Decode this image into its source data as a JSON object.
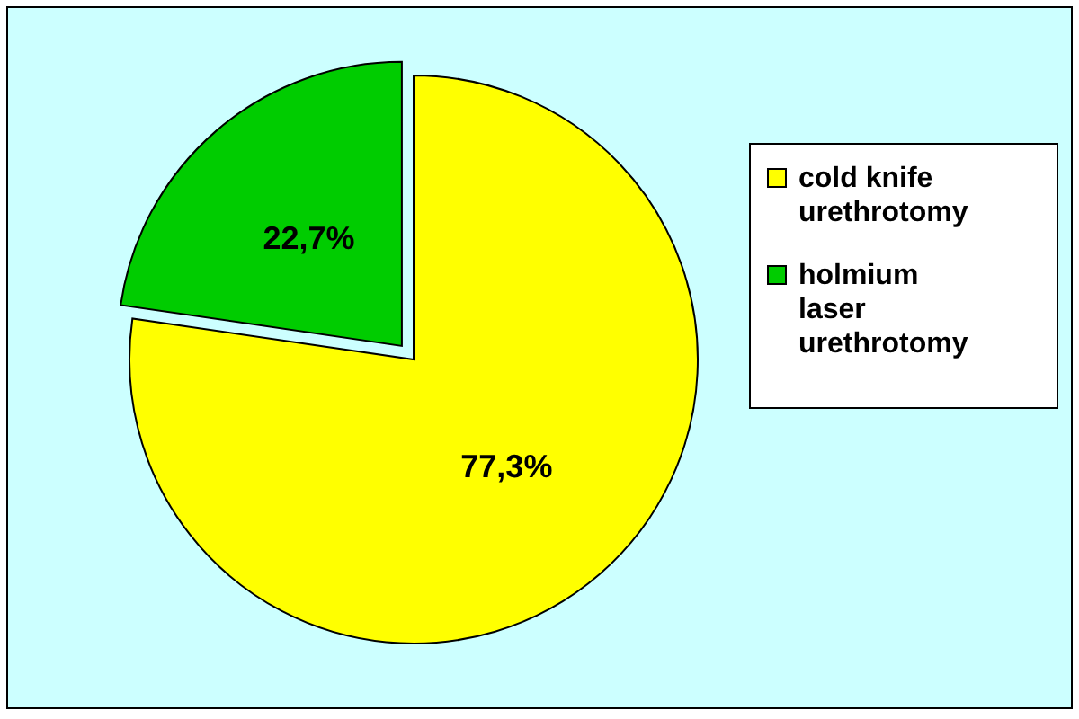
{
  "chart_data": {
    "type": "pie",
    "categories": [
      "cold knife urethrotomy",
      "holmium laser urethrotomy"
    ],
    "values": [
      77.3,
      22.7
    ],
    "colors": [
      "#ffff00",
      "#00cc00"
    ],
    "value_labels": [
      "77,3%",
      "22,7%"
    ],
    "legend": "right"
  }
}
